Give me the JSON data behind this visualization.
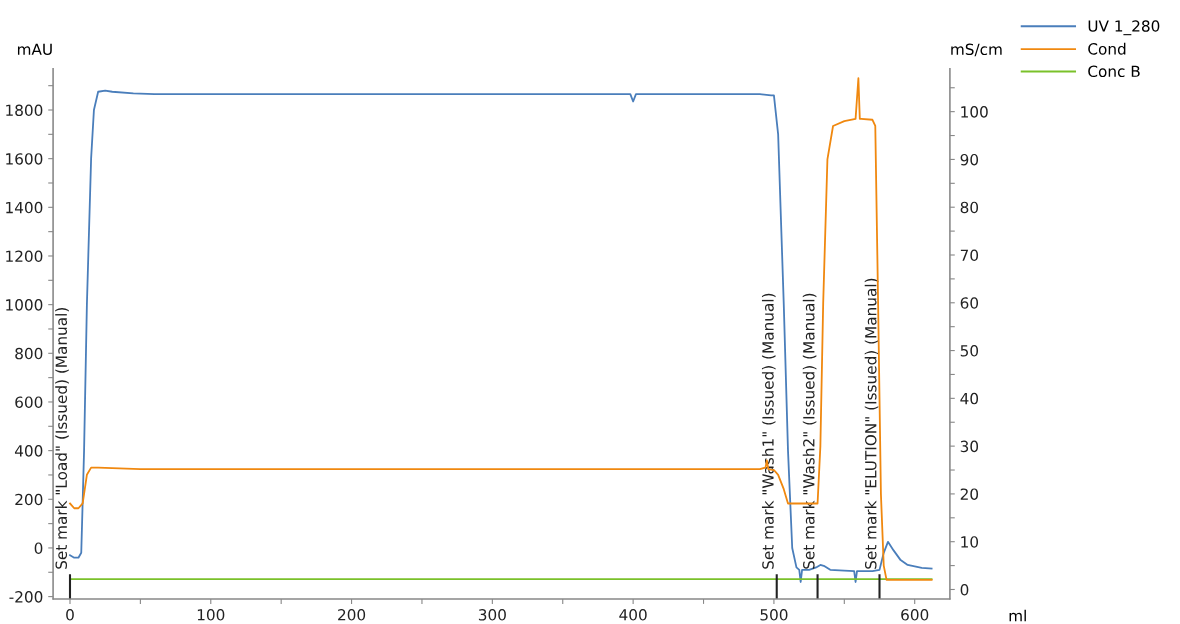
{
  "chart_data": {
    "type": "line",
    "xlabel": "ml",
    "ylabel": "mAU",
    "y2label": "mS/cm",
    "xlim": [
      -12,
      625
    ],
    "xticks": [
      0,
      {
        "value": 50,
        "label": null
      },
      100,
      {
        "value": 150,
        "label": null
      },
      200,
      {
        "value": 250,
        "label": null
      },
      300,
      {
        "value": 350,
        "label": null
      },
      400,
      {
        "value": 450,
        "label": null
      },
      500,
      {
        "value": 550,
        "label": null
      },
      600
    ],
    "ylim": [
      -210,
      1970
    ],
    "yticks": [
      -200,
      {
        "value": -100,
        "label": null
      },
      0,
      {
        "value": 100,
        "label": null
      },
      200,
      {
        "value": 300,
        "label": null
      },
      400,
      {
        "value": 500,
        "label": null
      },
      600,
      {
        "value": 700,
        "label": null
      },
      800,
      {
        "value": 900,
        "label": null
      },
      1000,
      {
        "value": 1100,
        "label": null
      },
      1200,
      {
        "value": 1300,
        "label": null
      },
      1400,
      {
        "value": 1500,
        "label": null
      },
      1600,
      {
        "value": 1700,
        "label": null
      },
      1800,
      {
        "value": 1900,
        "label": null
      }
    ],
    "y2lim": [
      -2,
      109
    ],
    "y2ticks": [
      0,
      {
        "value": 5,
        "label": null
      },
      10,
      {
        "value": 15,
        "label": null
      },
      20,
      {
        "value": 25,
        "label": null
      },
      30,
      {
        "value": 35,
        "label": null
      },
      40,
      {
        "value": 45,
        "label": null
      },
      50,
      {
        "value": 55,
        "label": null
      },
      60,
      {
        "value": 65,
        "label": null
      },
      70,
      {
        "value": 75,
        "label": null
      },
      80,
      {
        "value": 85,
        "label": null
      },
      90,
      {
        "value": 95,
        "label": null
      },
      100,
      {
        "value": 105,
        "label": null
      }
    ],
    "grid": false,
    "legend": "top right",
    "marker": "none",
    "line_style": "solid",
    "series": [
      {
        "name": "UV 1_280",
        "color": "#4a7ebb",
        "x": [
          0,
          3,
          6,
          8,
          10,
          12,
          15,
          17,
          20,
          25,
          30,
          45,
          60,
          100,
          200,
          300,
          398,
          400,
          402,
          450,
          490,
          498,
          500,
          503,
          507,
          510,
          513,
          516,
          518,
          519,
          520,
          525,
          530,
          533,
          536,
          540,
          550,
          557,
          558,
          559,
          570,
          575,
          578,
          581,
          585,
          590,
          595,
          605,
          612
        ],
        "values": [
          -30,
          -40,
          -40,
          -20,
          400,
          1000,
          1600,
          1800,
          1875,
          1880,
          1875,
          1868,
          1865,
          1865,
          1865,
          1865,
          1865,
          1835,
          1865,
          1865,
          1865,
          1860,
          1860,
          1700,
          1000,
          400,
          0,
          -80,
          -90,
          -140,
          -90,
          -90,
          -80,
          -70,
          -75,
          -90,
          -93,
          -95,
          -140,
          -95,
          -95,
          -90,
          -20,
          25,
          -10,
          -50,
          -70,
          -82,
          -85
        ]
      },
      {
        "name": "Cond",
        "color": "#f0880f",
        "axis": "y2",
        "x": [
          0,
          3,
          6,
          9,
          12,
          15,
          20,
          50,
          100,
          200,
          300,
          400,
          490,
          494,
          495,
          496,
          500,
          503,
          507,
          510,
          520,
          529,
          531,
          533,
          535,
          538,
          542,
          550,
          558,
          560,
          561,
          562,
          570,
          572,
          574,
          576,
          578,
          580,
          600,
          612
        ],
        "values": [
          18,
          17,
          17,
          18,
          24,
          25.5,
          25.5,
          25.2,
          25.2,
          25.2,
          25.2,
          25.2,
          25.2,
          25.5,
          27,
          25.2,
          25,
          24,
          21,
          18,
          18,
          18,
          18,
          30,
          60,
          90,
          97,
          98,
          98.5,
          107,
          98.5,
          98.5,
          98.3,
          97,
          60,
          20,
          5,
          2,
          2,
          2
        ]
      },
      {
        "name": "Conc B",
        "color": "#7ac12a",
        "x": [
          0,
          612
        ],
        "values": [
          -128,
          -128
        ]
      }
    ],
    "ref_lines": [
      {
        "axis": "x",
        "value": 0,
        "label": "Set mark \"Load\" (Issued) (Manual)",
        "color": "#222222"
      },
      {
        "axis": "x",
        "value": 502,
        "label": "Set mark \"Wash1\" (Issued) (Manual)",
        "color": "#222222"
      },
      {
        "axis": "x",
        "value": 531,
        "label": "Set mark \"Wash2\" (Issued) (Manual)",
        "color": "#222222"
      },
      {
        "axis": "x",
        "value": 575,
        "label": "Set mark \"ELUTION\" (Issued) (Manual)",
        "color": "#222222"
      }
    ]
  }
}
